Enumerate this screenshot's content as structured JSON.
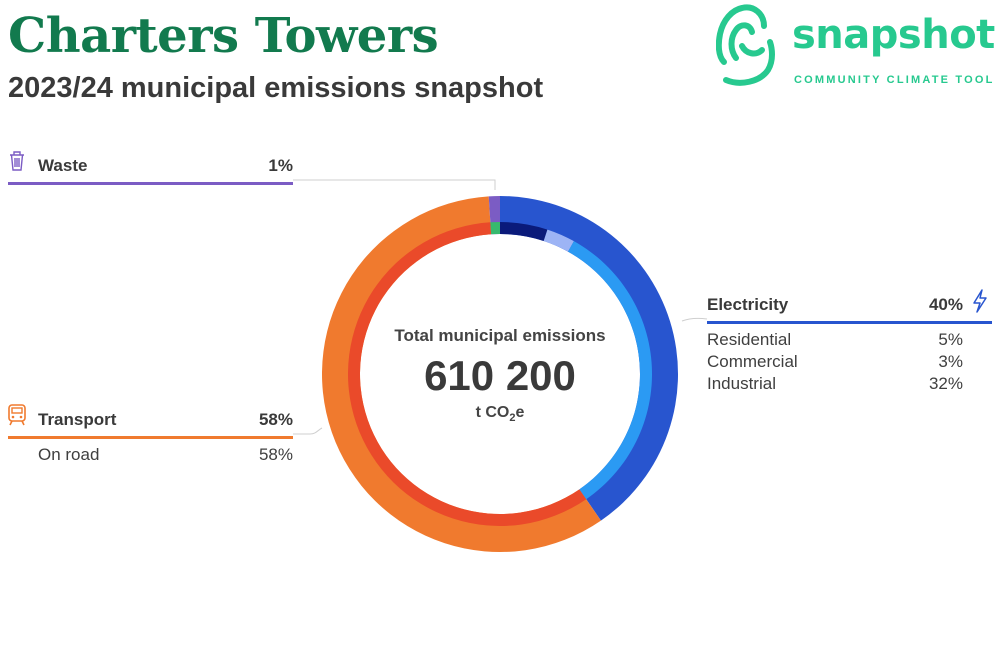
{
  "header": {
    "title": "Charters Towers",
    "subtitle": "2023/24 municipal emissions snapshot"
  },
  "logo": {
    "word": "snapshot",
    "tagline": "COMMUNITY CLIMATE TOOL",
    "color": "#27c98f"
  },
  "center": {
    "label": "Total municipal emissions",
    "value": "610 200",
    "unit_prefix": "t CO",
    "unit_sub": "2",
    "unit_suffix": "e"
  },
  "categories": {
    "waste": {
      "label": "Waste",
      "pct": "1%",
      "icon": "trash-icon",
      "color": "#7b5cc4"
    },
    "electricity": {
      "label": "Electricity",
      "pct": "40%",
      "icon": "lightning-icon",
      "color": "#2855cf",
      "items": [
        {
          "label": "Residential",
          "pct": "5%"
        },
        {
          "label": "Commercial",
          "pct": "3%"
        },
        {
          "label": "Industrial",
          "pct": "32%"
        }
      ]
    },
    "transport": {
      "label": "Transport",
      "pct": "58%",
      "icon": "train-icon",
      "color": "#f07a2e",
      "items": [
        {
          "label": "On road",
          "pct": "58%"
        }
      ]
    }
  },
  "chart_data": {
    "type": "donut",
    "total": 610200,
    "unit": "t CO2e",
    "outer_ring": [
      {
        "name": "Electricity",
        "value": 40,
        "color": "#2855cf"
      },
      {
        "name": "Transport",
        "value": 58,
        "color": "#f07a2e"
      },
      {
        "name": "Waste",
        "value": 1,
        "color": "#7b5cc4"
      }
    ],
    "inner_ring": [
      {
        "name": "Residential",
        "value": 5,
        "color": "#0a1a7a"
      },
      {
        "name": "Commercial",
        "value": 3,
        "color": "#9db4f5"
      },
      {
        "name": "Industrial",
        "value": 32,
        "color": "#2b9af3"
      },
      {
        "name": "On road",
        "value": 58,
        "color": "#ea4a2a"
      },
      {
        "name": "Waste",
        "value": 1,
        "color": "#37b96e"
      }
    ]
  }
}
